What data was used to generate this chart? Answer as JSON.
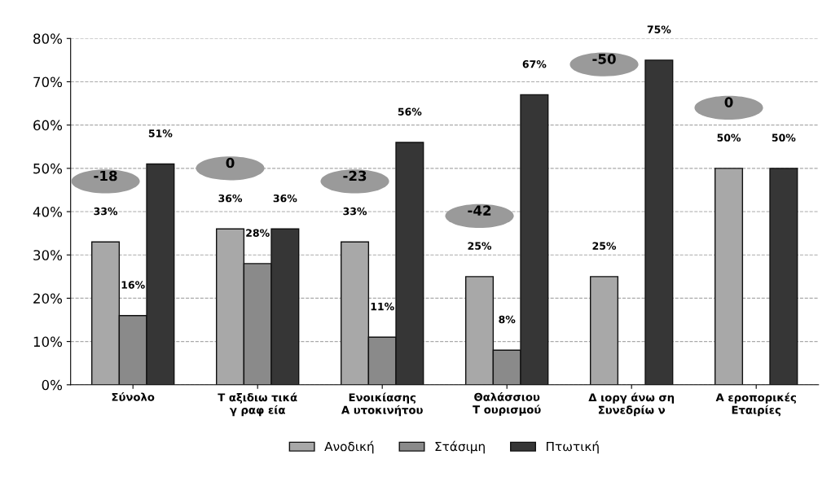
{
  "chart_data": {
    "type": "bar",
    "categories": [
      "Σύνολο",
      "Τ αξιδιω τικά\nγ ραφ εία",
      "Ενοικίασης\nΑ υτοκινήτου",
      "Θαλάσσιου\nΤ ουρισμού",
      "Δ ιοργ άνω ση\nΣυνεδρίω ν",
      "Α εροπορικές\nΕταιρίες"
    ],
    "series": [
      {
        "name": "Ανοδική",
        "color": "#a8a8a8",
        "values": [
          33,
          36,
          33,
          25,
          25,
          50
        ]
      },
      {
        "name": "Στάσιμη",
        "color": "#8a8a8a",
        "values": [
          16,
          28,
          11,
          8,
          null,
          null
        ]
      },
      {
        "name": "Πτωτική",
        "color": "#363636",
        "values": [
          51,
          36,
          56,
          67,
          75,
          50
        ]
      }
    ],
    "ylim": [
      0,
      80
    ],
    "yticks": [
      {
        "value": 0,
        "label": "0%"
      },
      {
        "value": 10,
        "label": "10%"
      },
      {
        "value": 20,
        "label": "20%"
      },
      {
        "value": 30,
        "label": "30%"
      },
      {
        "value": 40,
        "label": "40%"
      },
      {
        "value": 50,
        "label": "50%"
      },
      {
        "value": 60,
        "label": "60%"
      },
      {
        "value": 70,
        "label": "70%"
      },
      {
        "value": 80,
        "label": "80%"
      }
    ],
    "value_labels": [
      [
        "33%",
        "36%",
        "33%",
        "25%",
        "25%",
        "50%"
      ],
      [
        "16%",
        "28%",
        "11%",
        "8%",
        null,
        null
      ],
      [
        "51%",
        "36%",
        "56%",
        "67%",
        "75%",
        "50%"
      ]
    ],
    "annotations": [
      "-18",
      "0",
      "-23",
      "-42",
      "-50",
      "0"
    ],
    "grid": "y",
    "legend": "bottom"
  }
}
